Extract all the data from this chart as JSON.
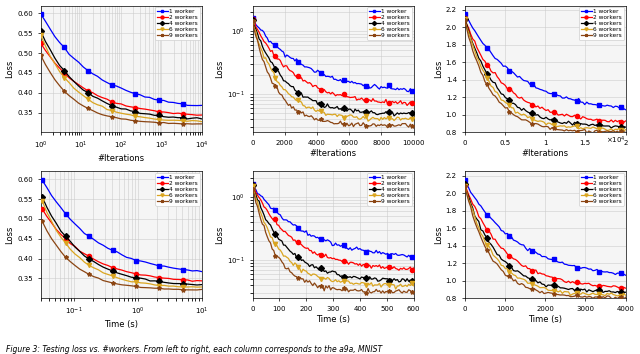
{
  "colors": [
    "blue",
    "red",
    "black",
    "goldenrod",
    "saddlebrown"
  ],
  "markers": [
    "s",
    "o",
    "D",
    "v",
    "*"
  ],
  "legend_labels": [
    "1 worker",
    "2 workers",
    "4 workers",
    "6 workers",
    "9 workers"
  ],
  "caption": "Figure 3: Testing loss vs. #workers. From left to right, each column corresponds to the a9a, MNIST",
  "starts_a9a": [
    0.6,
    0.525,
    0.555,
    0.545,
    0.495
  ],
  "ends_a9a": [
    0.355,
    0.338,
    0.33,
    0.325,
    0.32
  ],
  "starts_mnist": [
    1.5,
    1.55,
    1.45,
    1.4,
    1.35
  ],
  "ends_mnist": [
    0.1,
    0.068,
    0.047,
    0.04,
    0.032
  ],
  "starts_3rd": [
    2.15,
    2.1,
    2.1,
    2.1,
    2.08
  ],
  "ends_3rd": [
    1.02,
    0.9,
    0.86,
    0.83,
    0.8
  ]
}
